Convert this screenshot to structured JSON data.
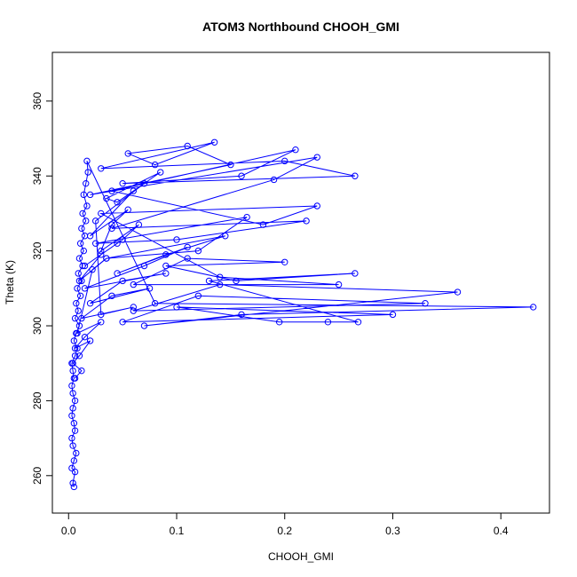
{
  "chart_data": {
    "type": "line",
    "title": "ATOM3 Northbound CHOOH_GMI",
    "xlabel": "CHOOH_GMI",
    "ylabel": "Theta (K)",
    "xlim": [
      -0.015,
      0.445
    ],
    "ylim": [
      250,
      373
    ],
    "xticks": [
      0.0,
      0.1,
      0.2,
      0.3,
      0.4
    ],
    "xtick_labels": [
      "0.0",
      "0.1",
      "0.2",
      "0.3",
      "0.4"
    ],
    "yticks": [
      260,
      280,
      300,
      320,
      340,
      360
    ],
    "ytick_labels": [
      "260",
      "280",
      "300",
      "320",
      "340",
      "360"
    ],
    "marker": "open-circle",
    "grid": false,
    "series": [
      {
        "color": "#0000ff",
        "points": [
          [
            0.005,
            257
          ],
          [
            0.004,
            258
          ],
          [
            0.006,
            261
          ],
          [
            0.003,
            262
          ],
          [
            0.005,
            264
          ],
          [
            0.007,
            266
          ],
          [
            0.004,
            268
          ],
          [
            0.003,
            270
          ],
          [
            0.006,
            272
          ],
          [
            0.005,
            274
          ],
          [
            0.003,
            276
          ],
          [
            0.004,
            278
          ],
          [
            0.006,
            280
          ],
          [
            0.004,
            282
          ],
          [
            0.003,
            284
          ],
          [
            0.005,
            286
          ],
          [
            0.004,
            288
          ],
          [
            0.003,
            290
          ],
          [
            0.006,
            292
          ],
          [
            0.008,
            294
          ],
          [
            0.005,
            296
          ],
          [
            0.007,
            298
          ],
          [
            0.01,
            300
          ],
          [
            0.006,
            302
          ],
          [
            0.009,
            304
          ],
          [
            0.007,
            306
          ],
          [
            0.011,
            308
          ],
          [
            0.008,
            310
          ],
          [
            0.012,
            312
          ],
          [
            0.009,
            314
          ],
          [
            0.013,
            316
          ],
          [
            0.01,
            318
          ],
          [
            0.014,
            320
          ],
          [
            0.011,
            322
          ],
          [
            0.015,
            324
          ],
          [
            0.012,
            326
          ],
          [
            0.016,
            328
          ],
          [
            0.013,
            330
          ],
          [
            0.017,
            332
          ],
          [
            0.014,
            335
          ],
          [
            0.016,
            338
          ],
          [
            0.018,
            341
          ],
          [
            0.017,
            344
          ],
          [
            0.08,
            306
          ],
          [
            0.43,
            305
          ],
          [
            0.16,
            303
          ],
          [
            0.07,
            300
          ],
          [
            0.36,
            309
          ],
          [
            0.14,
            311
          ],
          [
            0.06,
            304
          ],
          [
            0.33,
            306
          ],
          [
            0.12,
            308
          ],
          [
            0.05,
            301
          ],
          [
            0.3,
            303
          ],
          [
            0.1,
            305
          ],
          [
            0.195,
            301
          ],
          [
            0.24,
            301
          ],
          [
            0.268,
            301
          ],
          [
            0.13,
            312
          ],
          [
            0.265,
            314
          ],
          [
            0.155,
            312
          ],
          [
            0.09,
            316
          ],
          [
            0.2,
            317
          ],
          [
            0.11,
            318
          ],
          [
            0.06,
            311
          ],
          [
            0.25,
            311
          ],
          [
            0.14,
            313
          ],
          [
            0.03,
            330
          ],
          [
            0.23,
            332
          ],
          [
            0.18,
            327
          ],
          [
            0.04,
            336
          ],
          [
            0.21,
            347
          ],
          [
            0.16,
            340
          ],
          [
            0.05,
            338
          ],
          [
            0.265,
            340
          ],
          [
            0.2,
            344
          ],
          [
            0.03,
            342
          ],
          [
            0.135,
            349
          ],
          [
            0.08,
            343
          ],
          [
            0.055,
            346
          ],
          [
            0.11,
            348
          ],
          [
            0.15,
            343
          ],
          [
            0.02,
            335
          ],
          [
            0.23,
            345
          ],
          [
            0.19,
            339
          ],
          [
            0.04,
            326
          ],
          [
            0.22,
            328
          ],
          [
            0.1,
            323
          ],
          [
            0.025,
            322
          ],
          [
            0.165,
            329
          ],
          [
            0.12,
            320
          ],
          [
            0.035,
            318
          ],
          [
            0.145,
            324
          ],
          [
            0.09,
            319
          ],
          [
            0.045,
            314
          ],
          [
            0.11,
            321
          ],
          [
            0.07,
            316
          ],
          [
            0.015,
            310
          ],
          [
            0.09,
            314
          ],
          [
            0.05,
            312
          ],
          [
            0.02,
            306
          ],
          [
            0.075,
            310
          ],
          [
            0.04,
            308
          ],
          [
            0.012,
            302
          ],
          [
            0.06,
            305
          ],
          [
            0.03,
            303
          ],
          [
            0.025,
            328
          ],
          [
            0.07,
            338
          ],
          [
            0.045,
            333
          ],
          [
            0.035,
            334
          ],
          [
            0.085,
            341
          ],
          [
            0.06,
            336
          ],
          [
            0.02,
            324
          ],
          [
            0.055,
            331
          ],
          [
            0.04,
            327
          ],
          [
            0.03,
            320
          ],
          [
            0.065,
            327
          ],
          [
            0.05,
            323
          ],
          [
            0.015,
            316
          ],
          [
            0.045,
            322
          ],
          [
            0.03,
            319
          ],
          [
            0.01,
            312
          ],
          [
            0.035,
            318
          ],
          [
            0.022,
            315
          ],
          [
            0.008,
            298
          ],
          [
            0.03,
            301
          ],
          [
            0.015,
            297
          ],
          [
            0.006,
            294
          ],
          [
            0.02,
            296
          ],
          [
            0.01,
            292
          ],
          [
            0.004,
            290
          ],
          [
            0.012,
            288
          ],
          [
            0.006,
            286
          ]
        ]
      }
    ]
  }
}
